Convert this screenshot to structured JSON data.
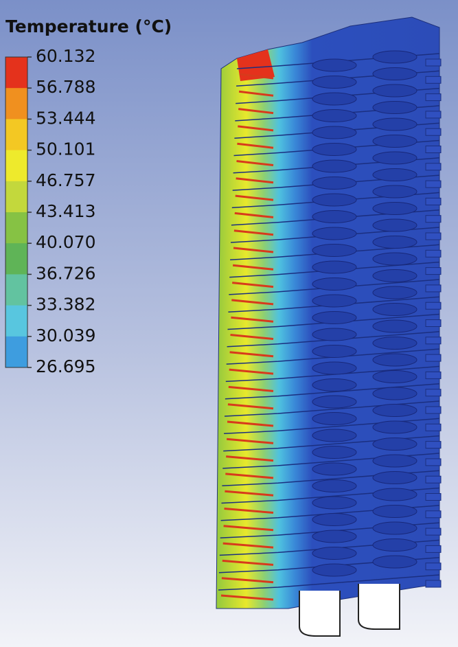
{
  "legend": {
    "title": "Temperature (°C)",
    "ticks": [
      "60.132",
      "56.788",
      "53.444",
      "50.101",
      "46.757",
      "43.413",
      "40.070",
      "36.726",
      "33.382",
      "30.039",
      "26.695"
    ],
    "colors": [
      "#e4321c",
      "#f0901f",
      "#f3c823",
      "#eeea2c",
      "#c3d83c",
      "#86c244",
      "#5fb457",
      "#62c3a0",
      "#58c6df",
      "#3e9ddf",
      "#3a5db5"
    ]
  }
}
